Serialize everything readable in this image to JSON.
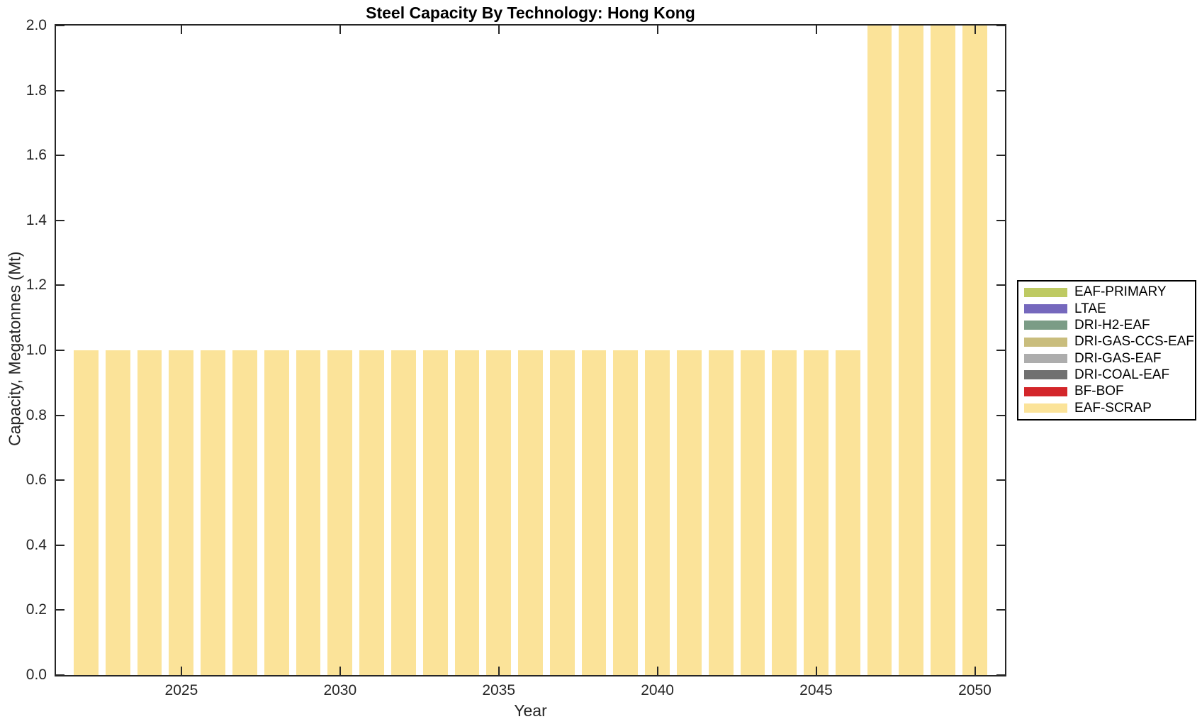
{
  "chart_data": {
    "type": "bar",
    "title": "Steel Capacity By Technology: Hong Kong",
    "xlabel": "Year",
    "ylabel": "Capacity, Megatonnes (Mt)",
    "xlim": [
      2021.05,
      2050.95
    ],
    "ylim": [
      0.0,
      2.0
    ],
    "grid": false,
    "axis_color": "#262626",
    "bar_width_years": 0.78,
    "xticks": [
      2025,
      2030,
      2035,
      2040,
      2045,
      2050
    ],
    "xtick_labels": [
      "2025",
      "2030",
      "2035",
      "2040",
      "2045",
      "2050"
    ],
    "yticks": [
      0.0,
      0.2,
      0.4,
      0.6,
      0.8,
      1.0,
      1.2,
      1.4,
      1.6,
      1.8,
      2.0
    ],
    "ytick_labels": [
      "0.0",
      "0.2",
      "0.4",
      "0.6",
      "0.8",
      "1.0",
      "1.2",
      "1.4",
      "1.6",
      "1.8",
      "2.0"
    ],
    "series": [
      {
        "name": "EAF-SCRAP",
        "color": "#FBE399",
        "x": [
          2022,
          2023,
          2024,
          2025,
          2026,
          2027,
          2028,
          2029,
          2030,
          2031,
          2032,
          2033,
          2034,
          2035,
          2036,
          2037,
          2038,
          2039,
          2040,
          2041,
          2042,
          2043,
          2044,
          2045,
          2046,
          2047,
          2048,
          2049,
          2050
        ],
        "values": [
          1.0,
          1.0,
          1.0,
          1.0,
          1.0,
          1.0,
          1.0,
          1.0,
          1.0,
          1.0,
          1.0,
          1.0,
          1.0,
          1.0,
          1.0,
          1.0,
          1.0,
          1.0,
          1.0,
          1.0,
          1.0,
          1.0,
          1.0,
          1.0,
          1.0,
          2.0,
          2.0,
          2.0,
          2.0
        ]
      }
    ],
    "legend": {
      "position": "outside-right",
      "entries": [
        {
          "label": "EAF-PRIMARY",
          "color": "#BECA63"
        },
        {
          "label": "LTAE",
          "color": "#7568BD"
        },
        {
          "label": "DRI-H2-EAF",
          "color": "#7B9C86"
        },
        {
          "label": "DRI-GAS-CCS-EAF",
          "color": "#C9BD7D"
        },
        {
          "label": "DRI-GAS-EAF",
          "color": "#ADADAD"
        },
        {
          "label": "DRI-COAL-EAF",
          "color": "#707070"
        },
        {
          "label": "BF-BOF",
          "color": "#D3262A"
        },
        {
          "label": "EAF-SCRAP",
          "color": "#FBE399"
        }
      ]
    }
  }
}
